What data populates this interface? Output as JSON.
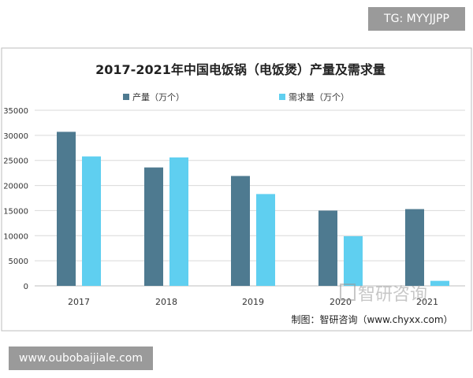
{
  "overlay": {
    "top_tag": "TG: MYYJJPP",
    "bottom_tag": "www.oubobaijiale.com"
  },
  "watermark": "智研咨询",
  "source_note": "制图：智研咨询（www.chyxx.com）",
  "colors": {
    "production": "#4e7a90",
    "demand": "#5fcff0",
    "gridline": "#d9d9d9",
    "axis_text": "#333333",
    "title_text": "#222222"
  },
  "chart_data": {
    "type": "bar",
    "title": "2017-2021年中国电饭锅（电饭煲）产量及需求量",
    "categories": [
      "2017",
      "2018",
      "2019",
      "2020",
      "2021"
    ],
    "series": [
      {
        "name": "产量（万个）",
        "values": [
          30700,
          23600,
          21900,
          15000,
          15300
        ]
      },
      {
        "name": "需求量（万个）",
        "values": [
          25800,
          25600,
          18300,
          9900,
          1000
        ]
      }
    ],
    "yticks": [
      "35000",
      "30000",
      "25000",
      "20000",
      "15000",
      "10000",
      "5000",
      "0"
    ],
    "ylim": [
      0,
      35000
    ],
    "grid": true,
    "legend": "top-center"
  }
}
